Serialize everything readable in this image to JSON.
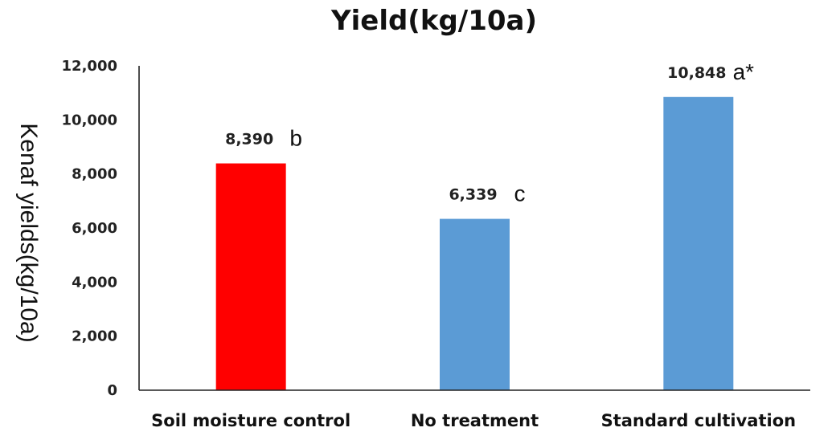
{
  "chart_data": {
    "type": "bar",
    "title": "Yield(kg/10a)",
    "xlabel": "",
    "ylabel": "Kenaf  yields(kg/10a)",
    "ylim": [
      0,
      12000
    ],
    "yticks": [
      0,
      2000,
      4000,
      6000,
      8000,
      10000,
      12000
    ],
    "ytick_labels": [
      "0",
      "2,000",
      "4,000",
      "6,000",
      "8,000",
      "10,000",
      "12,000"
    ],
    "grid": false,
    "legend": "none",
    "categories": [
      "Soil moisture control",
      "No treatment",
      "Standard cultivation"
    ],
    "values": [
      8390,
      6339,
      10848
    ],
    "value_labels": [
      "8,390",
      "6,339",
      "10,848"
    ],
    "significance": [
      "b",
      "c",
      "a*"
    ],
    "colors": [
      "#ff0000",
      "#5b9bd5",
      "#5b9bd5"
    ]
  }
}
